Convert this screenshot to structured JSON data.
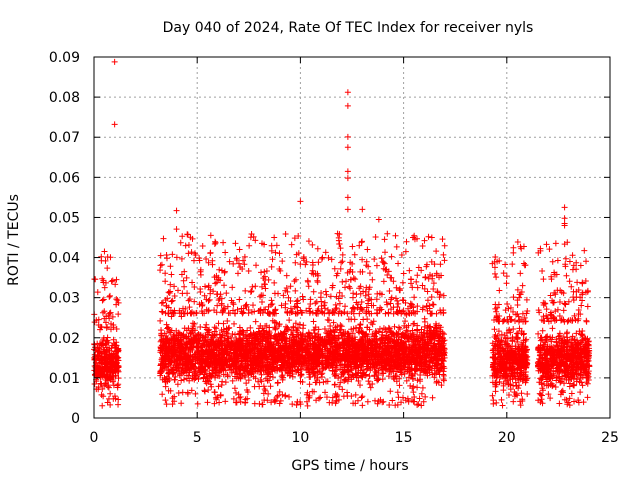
{
  "chart_data": {
    "type": "scatter",
    "title": "Day 040 of 2024, Rate Of TEC Index for receiver nyls",
    "xlabel": "GPS time / hours",
    "ylabel": "ROTI / TECUs",
    "xlim": [
      0,
      25
    ],
    "ylim": [
      0,
      0.09
    ],
    "xticks": [
      0,
      5,
      10,
      15,
      20,
      25
    ],
    "xtick_labels": [
      "0",
      "5",
      "10",
      "15",
      "20",
      "25"
    ],
    "yticks": [
      0,
      0.01,
      0.02,
      0.03,
      0.04,
      0.05,
      0.06,
      0.07,
      0.08,
      0.09
    ],
    "ytick_labels": [
      "0",
      "0.01",
      "0.02",
      "0.03",
      "0.04",
      "0.05",
      "0.06",
      "0.07",
      "0.08",
      "0.09"
    ],
    "grid": true,
    "marker": "+",
    "color": "#ff0000",
    "coverage_segments": [
      {
        "start": 0.0,
        "end": 1.2,
        "low": 0.005,
        "high": 0.022
      },
      {
        "start": 3.2,
        "end": 17.0,
        "low": 0.006,
        "high": 0.026
      },
      {
        "start": 19.3,
        "end": 21.0,
        "low": 0.005,
        "high": 0.024
      },
      {
        "start": 21.5,
        "end": 24.0,
        "low": 0.005,
        "high": 0.024
      }
    ],
    "outliers": [
      {
        "x": 1.0,
        "y": 0.0888
      },
      {
        "x": 1.0,
        "y": 0.0732
      },
      {
        "x": 4.0,
        "y": 0.0517
      },
      {
        "x": 4.0,
        "y": 0.0471
      },
      {
        "x": 10.0,
        "y": 0.054
      },
      {
        "x": 12.3,
        "y": 0.0812
      },
      {
        "x": 12.3,
        "y": 0.0778
      },
      {
        "x": 12.3,
        "y": 0.0701
      },
      {
        "x": 12.3,
        "y": 0.0675
      },
      {
        "x": 12.3,
        "y": 0.0615
      },
      {
        "x": 12.3,
        "y": 0.0598
      },
      {
        "x": 12.3,
        "y": 0.055
      },
      {
        "x": 12.3,
        "y": 0.052
      },
      {
        "x": 13.0,
        "y": 0.052
      },
      {
        "x": 13.8,
        "y": 0.0495
      },
      {
        "x": 19.3,
        "y": 0.0385
      },
      {
        "x": 22.8,
        "y": 0.0525
      },
      {
        "x": 22.8,
        "y": 0.0498
      },
      {
        "x": 22.8,
        "y": 0.0485
      },
      {
        "x": 22.8,
        "y": 0.048
      }
    ]
  }
}
